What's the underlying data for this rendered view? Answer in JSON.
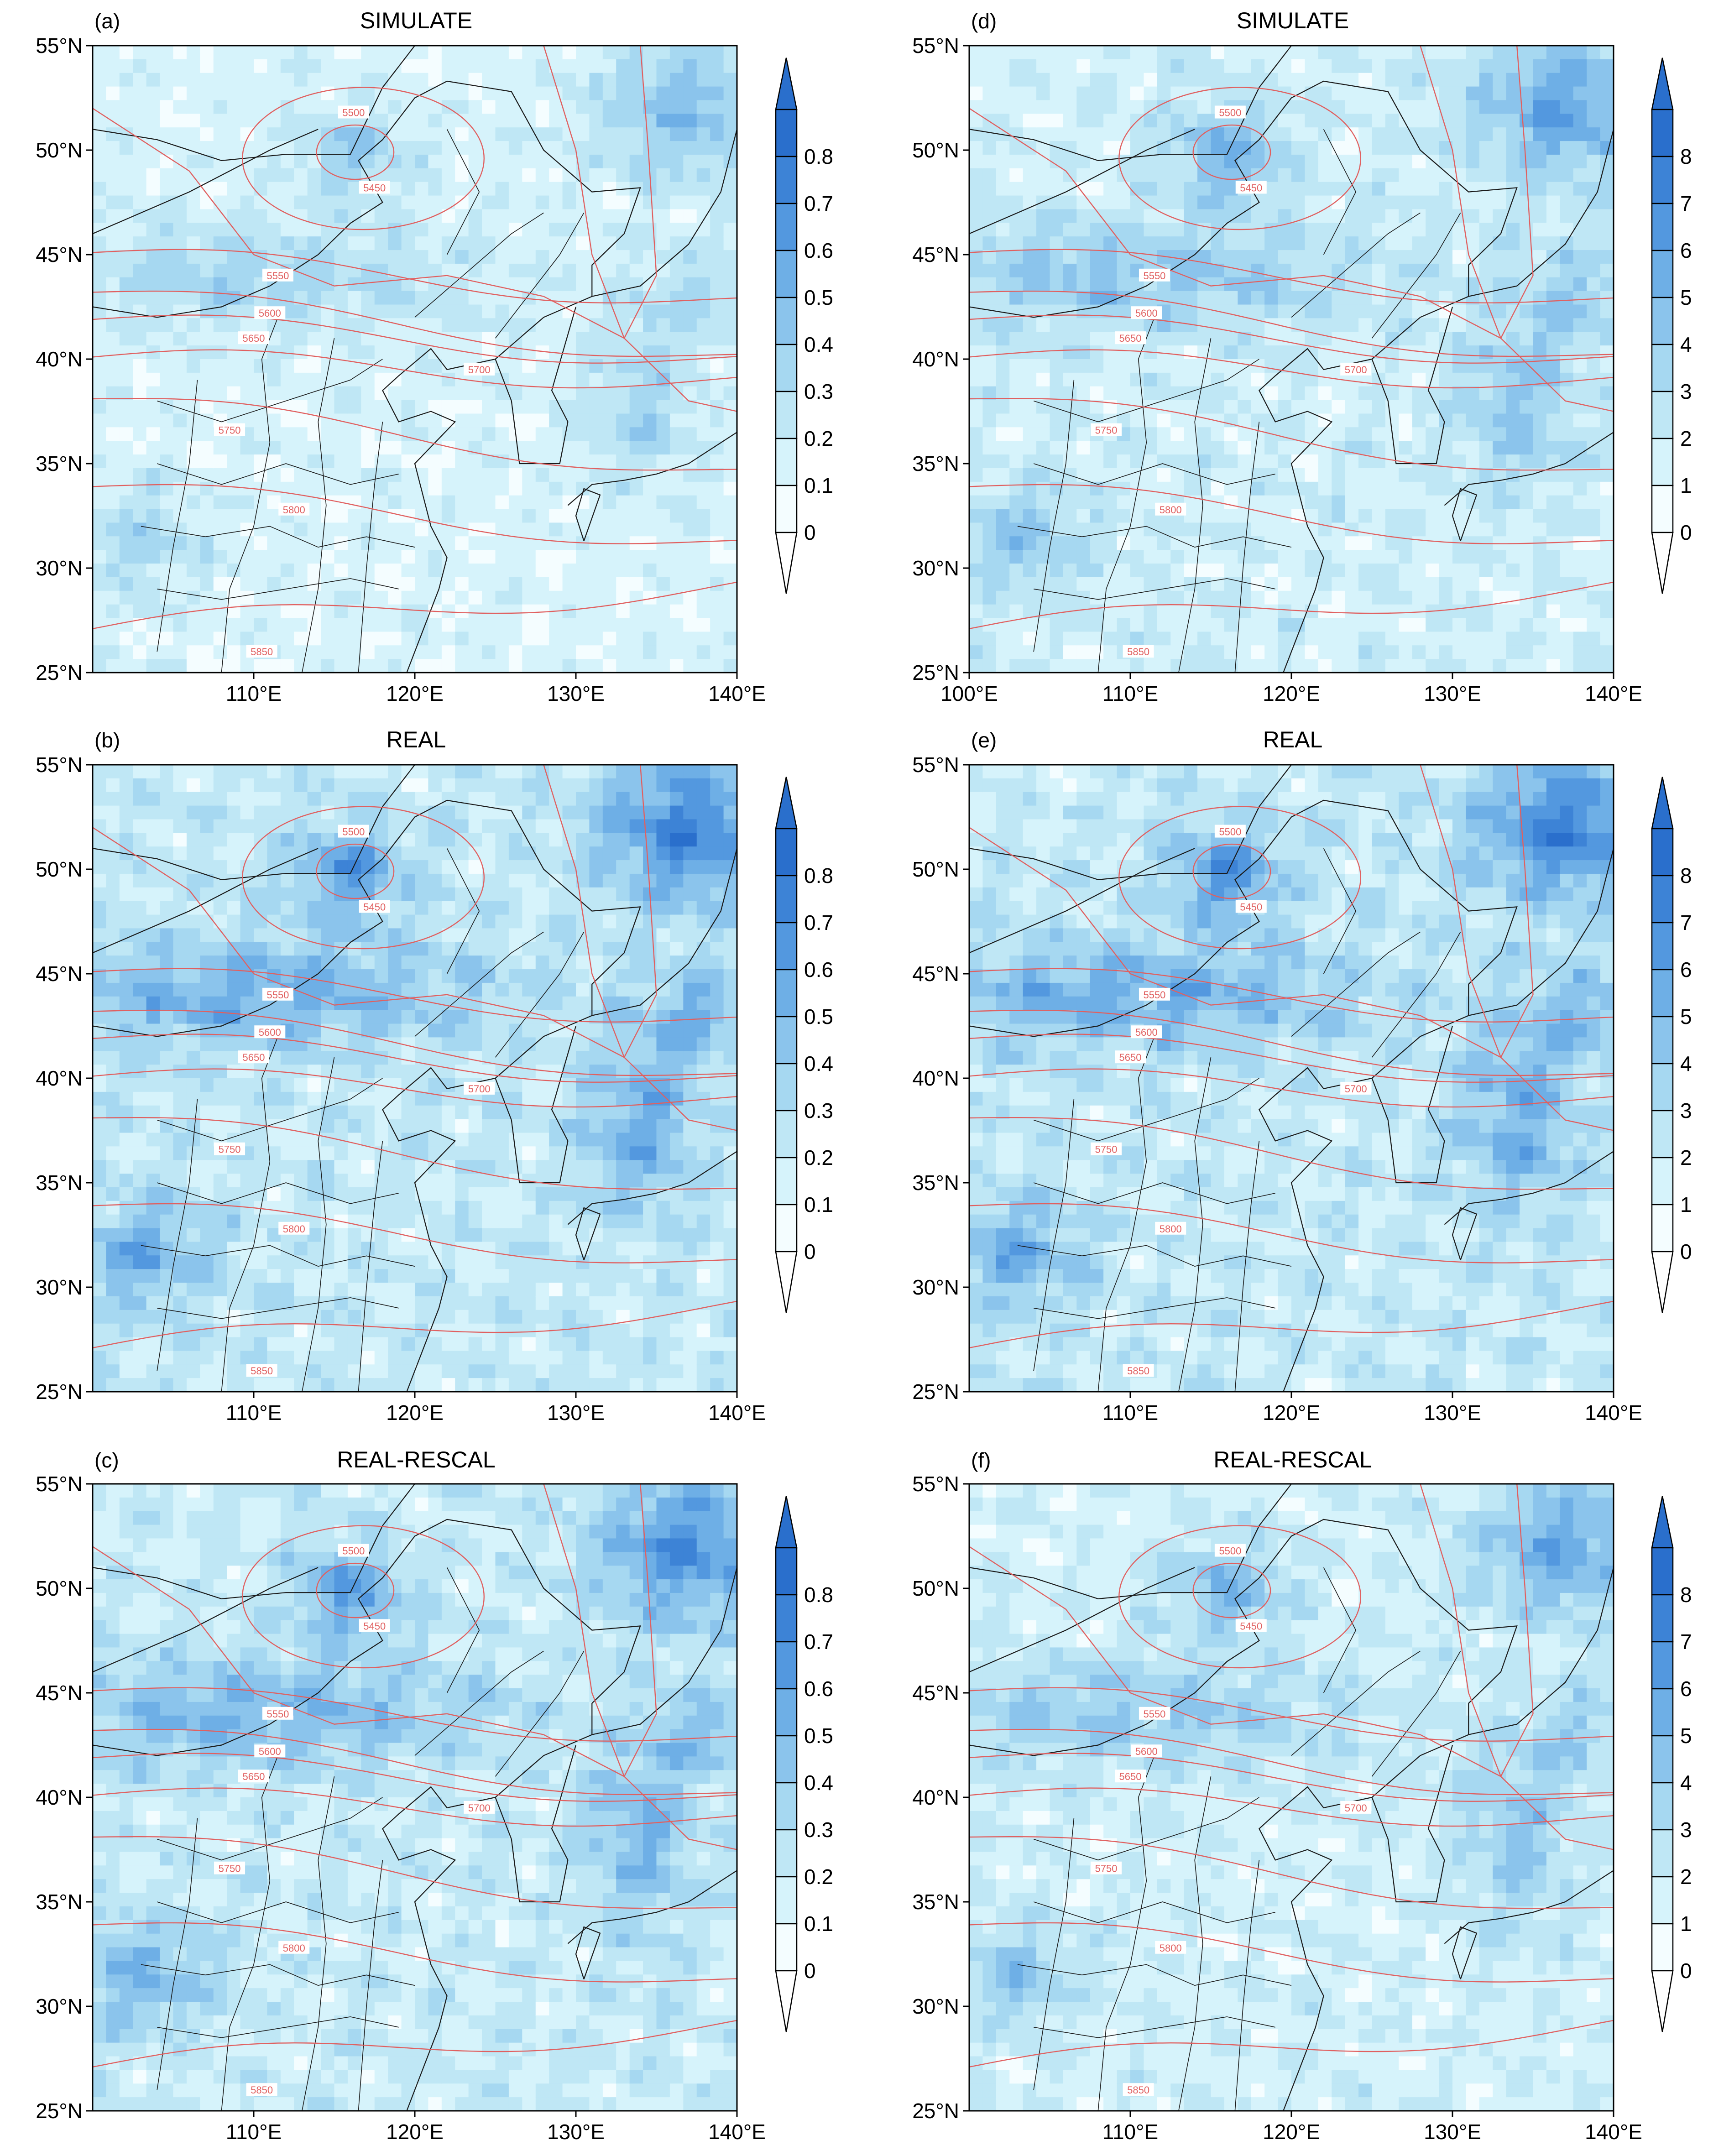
{
  "figure": {
    "panels": [
      {
        "label": "(a)",
        "title": "SIMULATE",
        "colorbar_ticks": [
          "0",
          "0.1",
          "0.2",
          "0.3",
          "0.4",
          "0.5",
          "0.6",
          "0.7",
          "0.8"
        ],
        "xticks": [
          "110°E",
          "120°E",
          "130°E",
          "140°E"
        ],
        "intensity": 0.18
      },
      {
        "label": "(b)",
        "title": "REAL",
        "colorbar_ticks": [
          "0",
          "0.1",
          "0.2",
          "0.3",
          "0.4",
          "0.5",
          "0.6",
          "0.7",
          "0.8"
        ],
        "xticks": [
          "110°E",
          "120°E",
          "130°E",
          "140°E"
        ],
        "intensity": 0.55
      },
      {
        "label": "(c)",
        "title": "REAL-RESCAL",
        "colorbar_ticks": [
          "0",
          "0.1",
          "0.2",
          "0.3",
          "0.4",
          "0.5",
          "0.6",
          "0.7",
          "0.8"
        ],
        "xticks": [
          "110°E",
          "120°E",
          "130°E",
          "140°E"
        ],
        "intensity": 0.48
      },
      {
        "label": "(d)",
        "title": "SIMULATE",
        "colorbar_ticks": [
          "0",
          "1",
          "2",
          "3",
          "4",
          "5",
          "6",
          "7",
          "8"
        ],
        "xticks": [
          "100°E",
          "110°E",
          "120°E",
          "130°E",
          "140°E"
        ],
        "intensity": 0.35
      },
      {
        "label": "(e)",
        "title": "REAL",
        "colorbar_ticks": [
          "0",
          "1",
          "2",
          "3",
          "4",
          "5",
          "6",
          "7",
          "8"
        ],
        "xticks": [
          "110°E",
          "120°E",
          "130°E",
          "140°E"
        ],
        "intensity": 0.55
      },
      {
        "label": "(f)",
        "title": "REAL-RESCAL",
        "colorbar_ticks": [
          "0",
          "1",
          "2",
          "3",
          "4",
          "5",
          "6",
          "7",
          "8"
        ],
        "xticks": [
          "110°E",
          "120°E",
          "130°E",
          "140°E"
        ],
        "intensity": 0.32
      }
    ],
    "yticks": [
      "55°N",
      "50°N",
      "45°N",
      "40°N",
      "35°N",
      "30°N",
      "25°N"
    ],
    "lon_range": [
      100,
      140
    ],
    "lat_range": [
      25,
      55
    ],
    "contours": [
      {
        "value": 5450,
        "label": "5450",
        "label_lon": 117.5,
        "label_lat": 48.2
      },
      {
        "value": 5500,
        "label": "5500",
        "label_lon": 116.2,
        "label_lat": 51.8
      },
      {
        "value": 5550,
        "label": "5550",
        "label_lon": 111.5,
        "label_lat": 44.0
      },
      {
        "value": 5600,
        "label": "5600",
        "label_lon": 111.0,
        "label_lat": 42.2
      },
      {
        "value": 5650,
        "label": "5650",
        "label_lon": 110.0,
        "label_lat": 41.0
      },
      {
        "value": 5700,
        "label": "5700",
        "label_lon": 124.0,
        "label_lat": 39.5
      },
      {
        "value": 5750,
        "label": "5750",
        "label_lon": 108.5,
        "label_lat": 36.6
      },
      {
        "value": 5800,
        "label": "5800",
        "label_lon": 112.5,
        "label_lat": 32.8
      },
      {
        "value": 5850,
        "label": "5850",
        "label_lon": 110.5,
        "label_lat": 26.0
      }
    ],
    "colors": {
      "contour": "#e06060",
      "boundary": "#1a1a1a",
      "shade_levels": [
        "#f4fdff",
        "#d6f3fb",
        "#bfe7f5",
        "#a6d8f1",
        "#8bc4ec",
        "#6eafe6",
        "#5398df",
        "#3d83d6",
        "#2a6fcc"
      ]
    }
  }
}
